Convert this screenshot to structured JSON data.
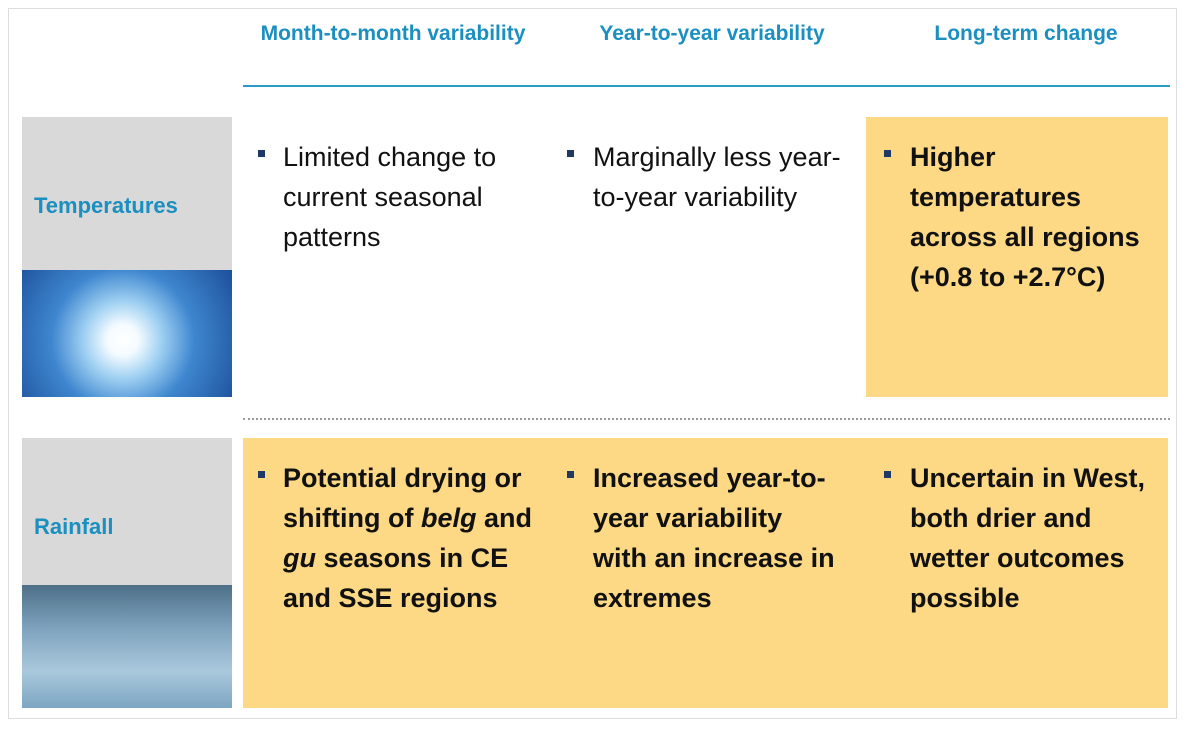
{
  "header": {
    "columns": [
      "Month-to-month variability",
      "Year-to-year variability",
      "Long-term change"
    ]
  },
  "table": {
    "rows": [
      {
        "label": "Temperatures",
        "cells": [
          {
            "parts": [
              "Limited change to current seasonal patterns"
            ],
            "highlighted": false
          },
          {
            "parts": [
              "Marginally less year-to-year variability"
            ],
            "highlighted": false
          },
          {
            "parts": [
              "Higher temperatures across all regions (+0.8 to +2.7°C)"
            ],
            "highlighted": true
          }
        ]
      },
      {
        "label": "Rainfall",
        "cells": [
          {
            "parts": [
              "Potential drying or shifting of ",
              "belg",
              " and ",
              "gu",
              " seasons in CE and SSE regions"
            ],
            "highlighted": true
          },
          {
            "parts": [
              "Increased year-to-year variability with an increase in extremes"
            ],
            "highlighted": true
          },
          {
            "parts": [
              "Uncertain in West, both drier and wetter outcomes possible"
            ],
            "highlighted": true
          }
        ]
      }
    ]
  }
}
